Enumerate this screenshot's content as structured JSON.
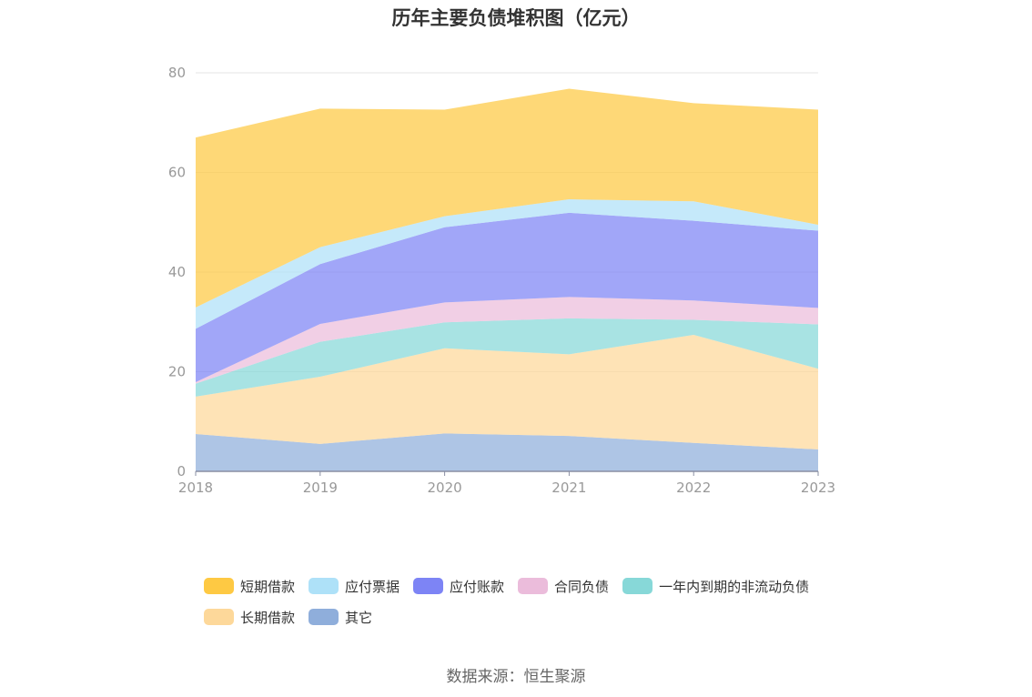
{
  "chart_data": {
    "type": "area",
    "stacked": true,
    "title": "历年主要负债堆积图（亿元）",
    "x": [
      "2018",
      "2019",
      "2020",
      "2021",
      "2022",
      "2023"
    ],
    "ylim": [
      0,
      80
    ],
    "yticks": [
      "0",
      "20",
      "40",
      "60",
      "80"
    ],
    "grid": true,
    "legend_position": "bottom",
    "series": [
      {
        "name": "其它",
        "color": "#8faedb",
        "values": [
          7.5,
          5.5,
          7.6,
          7.1,
          5.7,
          4.4
        ]
      },
      {
        "name": "长期借款",
        "color": "#fdd89a",
        "values": [
          7.5,
          13.5,
          17.1,
          16.4,
          21.7,
          16.2
        ]
      },
      {
        "name": "一年内到期的非流动负债",
        "color": "#87d8d8",
        "values": [
          2.6,
          7.0,
          5.2,
          7.2,
          3.0,
          8.9
        ]
      },
      {
        "name": "合同负债",
        "color": "#ebbcdb",
        "values": [
          0.3,
          3.6,
          4.0,
          4.3,
          3.9,
          3.3
        ]
      },
      {
        "name": "应付账款",
        "color": "#7d84f5",
        "values": [
          10.7,
          12.0,
          15.1,
          16.9,
          16.0,
          15.5
        ]
      },
      {
        "name": "应付票据",
        "color": "#aee1f8",
        "values": [
          4.3,
          3.4,
          2.2,
          2.7,
          3.9,
          1.2
        ]
      },
      {
        "name": "短期借款",
        "color": "#fec943",
        "values": [
          34.1,
          27.8,
          21.4,
          22.2,
          19.7,
          23.1
        ]
      }
    ],
    "legend_order": [
      "短期借款",
      "应付票据",
      "应付账款",
      "合同负债",
      "一年内到期的非流动负债",
      "长期借款",
      "其它"
    ]
  },
  "footer": {
    "source": "数据来源：恒生聚源"
  }
}
